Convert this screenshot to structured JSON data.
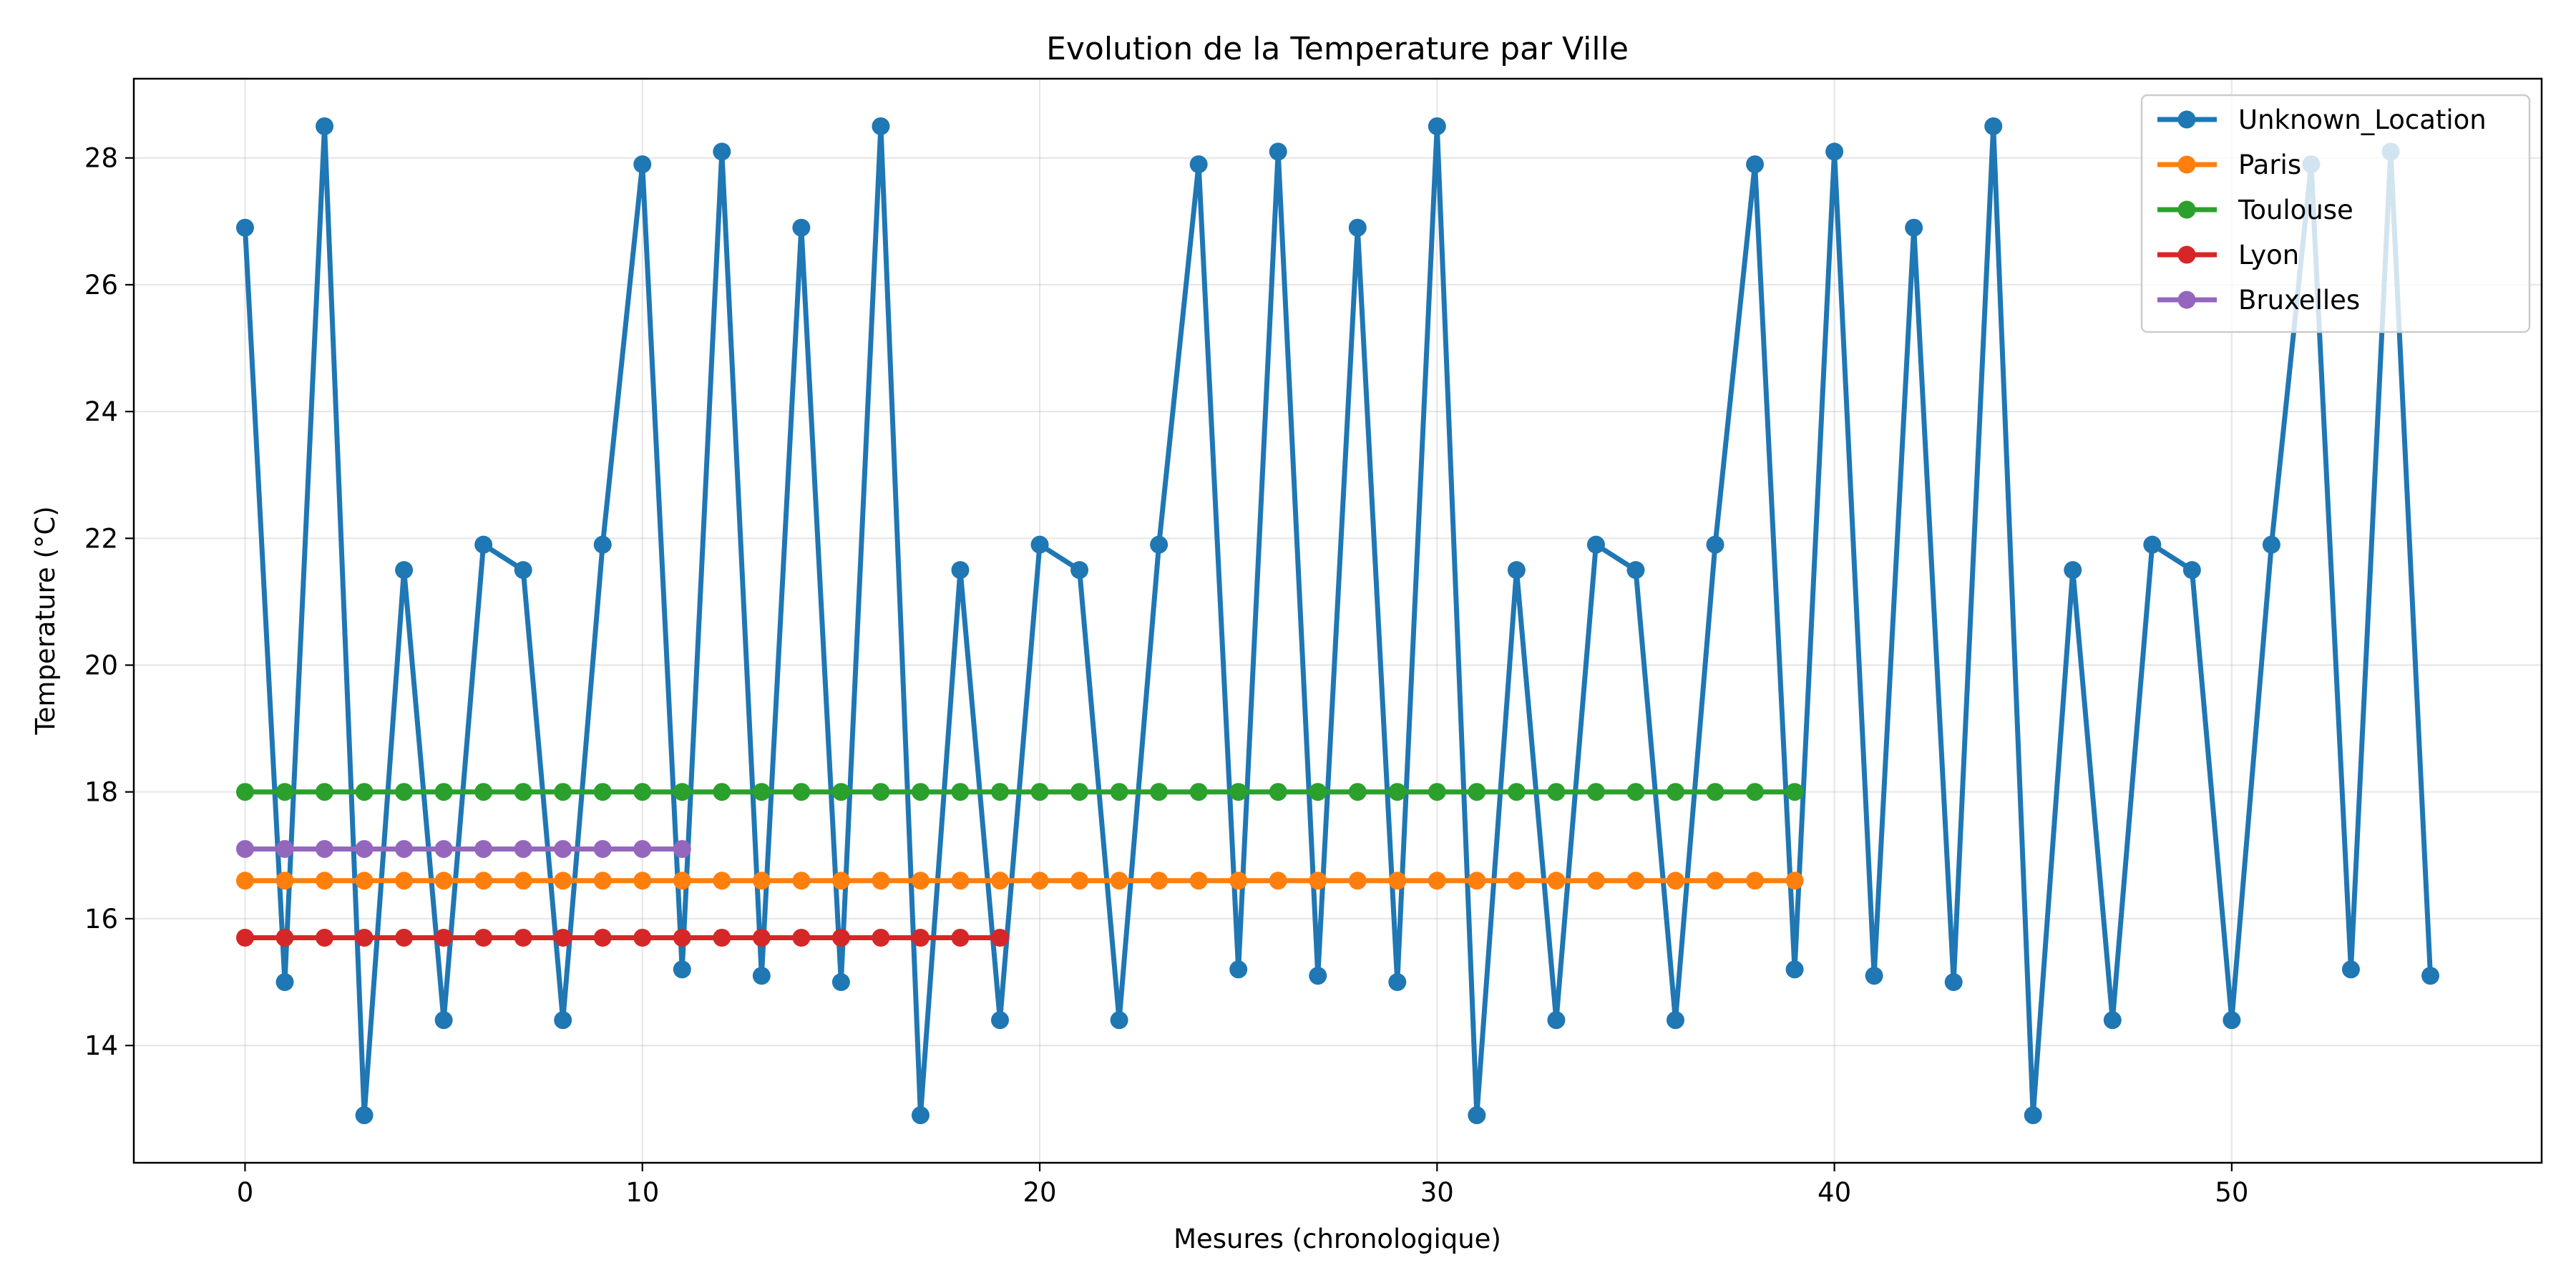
{
  "chart_data": {
    "type": "line",
    "title": "Evolution de la Temperature par Ville",
    "xlabel": "Mesures (chronologique)",
    "ylabel": "Temperature (°C)",
    "xlim": [
      -2.8,
      57.8
    ],
    "ylim": [
      12.15,
      29.25
    ],
    "xticks": [
      0,
      10,
      20,
      30,
      40,
      50
    ],
    "yticks": [
      14,
      16,
      18,
      20,
      22,
      24,
      26,
      28
    ],
    "grid": true,
    "legend_position": "top-right",
    "series": [
      {
        "name": "Unknown_Location",
        "color": "#1f77b4",
        "x": [
          0,
          1,
          2,
          3,
          4,
          5,
          6,
          7,
          8,
          9,
          10,
          11,
          12,
          13,
          14,
          15,
          16,
          17,
          18,
          19,
          20,
          21,
          22,
          23,
          24,
          25,
          26,
          27,
          28,
          29,
          30,
          31,
          32,
          33,
          34,
          35,
          36,
          37,
          38,
          39,
          40,
          41,
          42,
          43,
          44,
          45,
          46,
          47,
          48,
          49,
          50,
          51,
          52,
          53,
          54,
          55
        ],
        "values": [
          26.9,
          15.0,
          28.5,
          12.9,
          21.5,
          14.4,
          21.9,
          21.5,
          14.4,
          21.9,
          27.9,
          15.2,
          28.1,
          15.1,
          26.9,
          15.0,
          28.5,
          12.9,
          21.5,
          14.4,
          21.9,
          21.5,
          14.4,
          21.9,
          27.9,
          15.2,
          28.1,
          15.1,
          26.9,
          15.0,
          28.5,
          12.9,
          21.5,
          14.4,
          21.9,
          21.5,
          14.4,
          21.9,
          27.9,
          15.2,
          28.1,
          15.1,
          26.9,
          15.0,
          28.5,
          12.9,
          21.5,
          14.4,
          21.9,
          21.5,
          14.4,
          21.9,
          27.9,
          15.2,
          28.1,
          15.1
        ]
      },
      {
        "name": "Paris",
        "color": "#ff7f0e",
        "x": [
          0,
          1,
          2,
          3,
          4,
          5,
          6,
          7,
          8,
          9,
          10,
          11,
          12,
          13,
          14,
          15,
          16,
          17,
          18,
          19,
          20,
          21,
          22,
          23,
          24,
          25,
          26,
          27,
          28,
          29,
          30,
          31,
          32,
          33,
          34,
          35,
          36,
          37,
          38,
          39
        ],
        "values": [
          16.6,
          16.6,
          16.6,
          16.6,
          16.6,
          16.6,
          16.6,
          16.6,
          16.6,
          16.6,
          16.6,
          16.6,
          16.6,
          16.6,
          16.6,
          16.6,
          16.6,
          16.6,
          16.6,
          16.6,
          16.6,
          16.6,
          16.6,
          16.6,
          16.6,
          16.6,
          16.6,
          16.6,
          16.6,
          16.6,
          16.6,
          16.6,
          16.6,
          16.6,
          16.6,
          16.6,
          16.6,
          16.6,
          16.6,
          16.6
        ]
      },
      {
        "name": "Toulouse",
        "color": "#2ca02c",
        "x": [
          0,
          1,
          2,
          3,
          4,
          5,
          6,
          7,
          8,
          9,
          10,
          11,
          12,
          13,
          14,
          15,
          16,
          17,
          18,
          19,
          20,
          21,
          22,
          23,
          24,
          25,
          26,
          27,
          28,
          29,
          30,
          31,
          32,
          33,
          34,
          35,
          36,
          37,
          38,
          39
        ],
        "values": [
          18.0,
          18.0,
          18.0,
          18.0,
          18.0,
          18.0,
          18.0,
          18.0,
          18.0,
          18.0,
          18.0,
          18.0,
          18.0,
          18.0,
          18.0,
          18.0,
          18.0,
          18.0,
          18.0,
          18.0,
          18.0,
          18.0,
          18.0,
          18.0,
          18.0,
          18.0,
          18.0,
          18.0,
          18.0,
          18.0,
          18.0,
          18.0,
          18.0,
          18.0,
          18.0,
          18.0,
          18.0,
          18.0,
          18.0,
          18.0
        ]
      },
      {
        "name": "Lyon",
        "color": "#d62728",
        "x": [
          0,
          1,
          2,
          3,
          4,
          5,
          6,
          7,
          8,
          9,
          10,
          11,
          12,
          13,
          14,
          15,
          16,
          17,
          18,
          19
        ],
        "values": [
          15.7,
          15.7,
          15.7,
          15.7,
          15.7,
          15.7,
          15.7,
          15.7,
          15.7,
          15.7,
          15.7,
          15.7,
          15.7,
          15.7,
          15.7,
          15.7,
          15.7,
          15.7,
          15.7,
          15.7
        ]
      },
      {
        "name": "Bruxelles",
        "color": "#9467bd",
        "x": [
          0,
          1,
          2,
          3,
          4,
          5,
          6,
          7,
          8,
          9,
          10,
          11
        ],
        "values": [
          17.1,
          17.1,
          17.1,
          17.1,
          17.1,
          17.1,
          17.1,
          17.1,
          17.1,
          17.1,
          17.1,
          17.1
        ]
      }
    ]
  }
}
